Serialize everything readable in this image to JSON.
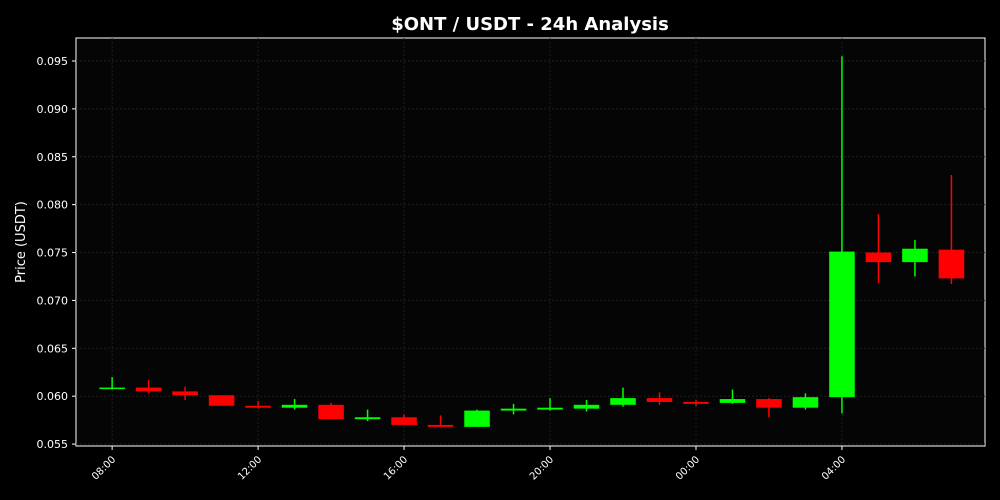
{
  "chart_data": {
    "type": "candlestick",
    "title": "$ONT / USDT - 24h Analysis",
    "y_label": "Price (USDT)",
    "categories": [
      "08:00",
      null,
      null,
      null,
      "12:00",
      null,
      null,
      null,
      "16:00",
      null,
      null,
      null,
      "20:00",
      null,
      null,
      null,
      "00:00",
      null,
      null,
      null,
      "04:00",
      null,
      null,
      null
    ],
    "xlim": [
      -0.99,
      23.92
    ],
    "series": [
      {
        "open": [
          0.0608,
          0.0609,
          0.0605,
          0.0601,
          0.059,
          0.0588,
          0.0591,
          0.0576,
          0.0578,
          0.057,
          0.0568,
          0.0585,
          0.0586,
          0.0587,
          0.0591,
          0.0598,
          0.0594,
          0.0593,
          0.0597,
          0.0588,
          0.0599,
          0.075,
          0.074,
          0.0753
        ],
        "high": [
          0.062,
          0.0617,
          0.061,
          0.0601,
          0.0595,
          0.0597,
          0.0593,
          0.0586,
          0.0581,
          0.058,
          0.0586,
          0.0592,
          0.0598,
          0.0596,
          0.0609,
          0.0604,
          0.0596,
          0.0607,
          0.0598,
          0.0603,
          0.0955,
          0.079,
          0.0763,
          0.0831
        ],
        "low": [
          0.0607,
          0.0603,
          0.0596,
          0.059,
          0.0587,
          0.0586,
          0.0576,
          0.0574,
          0.057,
          0.0568,
          0.0568,
          0.0581,
          0.0585,
          0.0584,
          0.0589,
          0.0591,
          0.059,
          0.0592,
          0.0578,
          0.0586,
          0.0582,
          0.0718,
          0.0725,
          0.0717
        ],
        "close": [
          0.0609,
          0.0605,
          0.0601,
          0.059,
          0.0588,
          0.0591,
          0.0576,
          0.0578,
          0.057,
          0.0568,
          0.0585,
          0.0587,
          0.0588,
          0.0591,
          0.0598,
          0.0594,
          0.0592,
          0.0597,
          0.0588,
          0.0599,
          0.0751,
          0.074,
          0.0754,
          0.0723
        ]
      }
    ],
    "up_color": "#00ff00",
    "down_color": "#ff0000",
    "ylim": [
      0.0548,
      0.0974
    ],
    "yticks": [
      0.055,
      {
        "value": 0.06,
        "label": "0.060"
      },
      0.065,
      {
        "value": 0.07,
        "label": "0.070"
      },
      0.075,
      {
        "value": 0.08,
        "label": "0.080"
      },
      0.085,
      {
        "value": 0.09,
        "label": "0.090"
      },
      0.095
    ],
    "grid": true
  }
}
